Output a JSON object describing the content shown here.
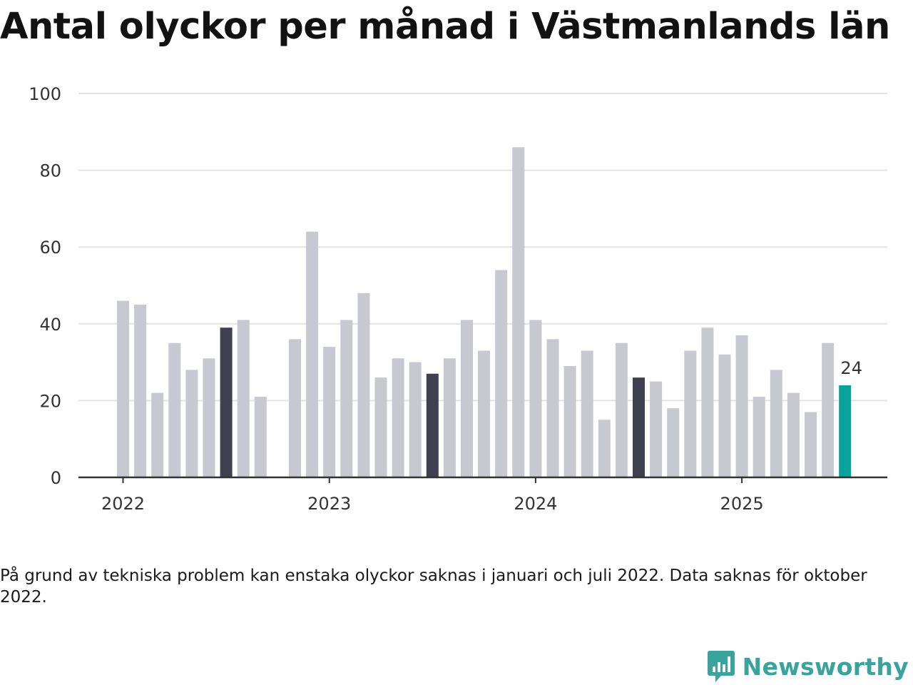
{
  "title": "Antal olyckor per månad i Västmanlands län",
  "note": "På grund av tekniska problem kan enstaka olyckor saknas i januari och juli 2022. Data saknas för oktober 2022.",
  "logo": {
    "text": "Newsworthy",
    "icon": "chat-bar-chart-icon"
  },
  "colors": {
    "default": "#c8c8d0",
    "july": "#404050",
    "latest": "#0aa29a",
    "grid": "#e2e2e2",
    "axis": "#333333"
  },
  "chart_data": {
    "type": "bar",
    "title": "Antal olyckor per månad i Västmanlands län",
    "x_ticks": [
      "2022",
      "2023",
      "2024",
      "2025"
    ],
    "y_ticks": [
      0,
      20,
      40,
      60,
      80,
      100
    ],
    "ylim": [
      0,
      100
    ],
    "grid": true,
    "categories": [
      "2022-01",
      "2022-02",
      "2022-03",
      "2022-04",
      "2022-05",
      "2022-06",
      "2022-07",
      "2022-08",
      "2022-09",
      "2022-10",
      "2022-11",
      "2022-12",
      "2023-01",
      "2023-02",
      "2023-03",
      "2023-04",
      "2023-05",
      "2023-06",
      "2023-07",
      "2023-08",
      "2023-09",
      "2023-10",
      "2023-11",
      "2023-12",
      "2024-01",
      "2024-02",
      "2024-03",
      "2024-04",
      "2024-05",
      "2024-06",
      "2024-07",
      "2024-08",
      "2024-09",
      "2024-10",
      "2024-11",
      "2024-12",
      "2025-01",
      "2025-02",
      "2025-03",
      "2025-04",
      "2025-05",
      "2025-06",
      "2025-07"
    ],
    "values": [
      46,
      45,
      22,
      35,
      28,
      31,
      39,
      41,
      21,
      null,
      36,
      64,
      34,
      41,
      48,
      26,
      31,
      30,
      27,
      31,
      41,
      33,
      54,
      86,
      41,
      36,
      29,
      33,
      15,
      35,
      26,
      25,
      18,
      33,
      39,
      32,
      37,
      21,
      28,
      22,
      17,
      35,
      24
    ],
    "highlight": {
      "2022-07": "july",
      "2023-07": "july",
      "2024-07": "july",
      "2025-07": "latest"
    },
    "data_labels": [
      {
        "category": "2025-07",
        "text": "24"
      }
    ]
  }
}
